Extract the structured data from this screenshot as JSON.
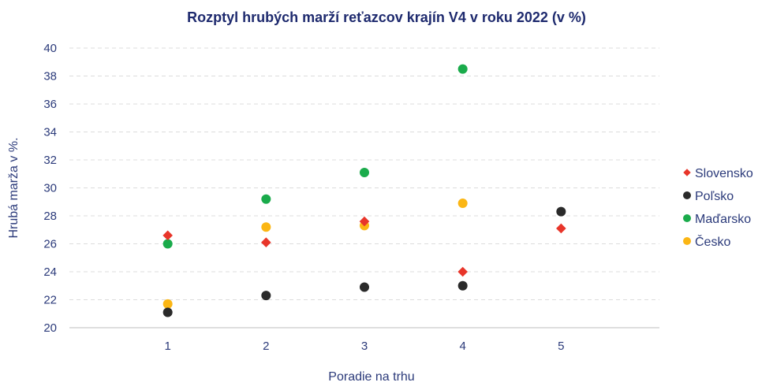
{
  "chart_data": {
    "type": "scatter",
    "title": "Rozptyl hrubých marží reťazcov krajín V4 v roku 2022 (v %)",
    "xlabel": "Poradie na trhu",
    "ylabel": "Hrubá marža v %.",
    "x": [
      1,
      2,
      3,
      4,
      5
    ],
    "xlim": [
      0,
      6
    ],
    "ylim": [
      20,
      40
    ],
    "yticks": [
      20,
      22,
      24,
      26,
      28,
      30,
      32,
      34,
      36,
      38,
      40
    ],
    "grid": true,
    "legend_position": "right",
    "series": [
      {
        "name": "Slovensko",
        "marker": "diamond",
        "color": "#e8352a",
        "points": [
          [
            1,
            26.6
          ],
          [
            2,
            26.1
          ],
          [
            3,
            27.6
          ],
          [
            4,
            24.0
          ],
          [
            5,
            27.1
          ]
        ]
      },
      {
        "name": "Poľsko",
        "marker": "circle",
        "color": "#2a2a2a",
        "points": [
          [
            1,
            21.1
          ],
          [
            2,
            22.3
          ],
          [
            3,
            22.9
          ],
          [
            4,
            23.0
          ],
          [
            5,
            28.3
          ]
        ]
      },
      {
        "name": "Maďarsko",
        "marker": "circle",
        "color": "#1aab4b",
        "points": [
          [
            1,
            26.0
          ],
          [
            2,
            29.2
          ],
          [
            3,
            31.1
          ],
          [
            4,
            38.5
          ]
        ]
      },
      {
        "name": "Česko",
        "marker": "circle",
        "color": "#fbb614",
        "points": [
          [
            1,
            21.7
          ],
          [
            2,
            27.2
          ],
          [
            3,
            27.3
          ],
          [
            4,
            28.9
          ]
        ]
      }
    ]
  }
}
